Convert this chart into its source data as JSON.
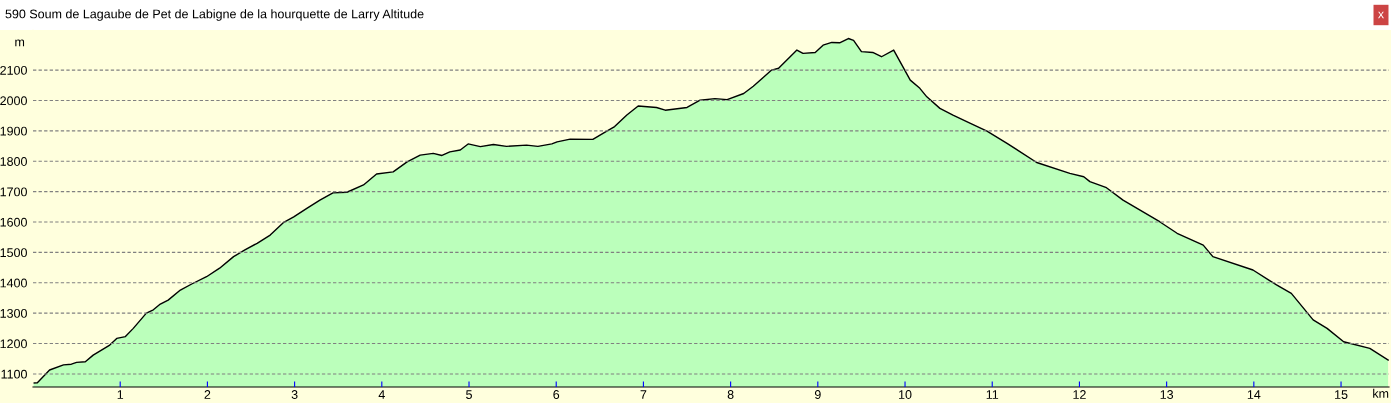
{
  "chart_data": {
    "type": "area",
    "title": "590 Soum de Lagaube de Pet de Labigne de la hourquette de Larry Altitude",
    "xlabel": "km",
    "ylabel": "m",
    "x": [
      0,
      0.05,
      0.19,
      0.35,
      0.44,
      0.5,
      0.6,
      0.69,
      0.88,
      0.96,
      1.06,
      1.15,
      1.3,
      1.38,
      1.46,
      1.55,
      1.69,
      1.82,
      1.99,
      2.14,
      2.3,
      2.43,
      2.57,
      2.72,
      2.87,
      2.99,
      3.14,
      3.29,
      3.44,
      3.6,
      3.79,
      3.94,
      4.13,
      4.29,
      4.44,
      4.59,
      4.69,
      4.78,
      4.9,
      4.99,
      5.13,
      5.28,
      5.43,
      5.66,
      5.79,
      5.95,
      6.01,
      6.16,
      6.42,
      6.58,
      6.67,
      6.81,
      6.94,
      7.15,
      7.25,
      7.5,
      7.65,
      7.82,
      7.96,
      8.15,
      8.26,
      8.38,
      8.47,
      8.55,
      8.72,
      8.76,
      8.83,
      8.97,
      9.06,
      9.16,
      9.25,
      9.35,
      9.41,
      9.5,
      9.63,
      9.73,
      9.87,
      10.06,
      10.17,
      10.25,
      10.4,
      10.55,
      10.75,
      10.94,
      11.17,
      11.51,
      11.89,
      12.05,
      12.12,
      12.31,
      12.5,
      12.92,
      13.12,
      13.42,
      13.53,
      13.99,
      14.26,
      14.43,
      14.68,
      14.84,
      15.03,
      15.33,
      15.54
    ],
    "series": [
      {
        "color": "#bbffbb",
        "values": [
          1070,
          1071,
          1113,
          1130,
          1132,
          1138,
          1140,
          1162,
          1195,
          1217,
          1223,
          1250,
          1300,
          1311,
          1330,
          1343,
          1376,
          1396,
          1420,
          1448,
          1486,
          1508,
          1530,
          1557,
          1598,
          1617,
          1645,
          1672,
          1696,
          1698,
          1722,
          1758,
          1765,
          1798,
          1820,
          1826,
          1819,
          1831,
          1837,
          1857,
          1848,
          1855,
          1849,
          1853,
          1849,
          1857,
          1864,
          1873,
          1872,
          1899,
          1914,
          1952,
          1982,
          1977,
          1968,
          1977,
          2001,
          2006,
          2003,
          2023,
          2047,
          2077,
          2100,
          2106,
          2155,
          2166,
          2155,
          2158,
          2182,
          2191,
          2190,
          2204,
          2198,
          2161,
          2158,
          2144,
          2166,
          2067,
          2040,
          2012,
          1974,
          1952,
          1925,
          1899,
          1859,
          1796,
          1760,
          1749,
          1733,
          1713,
          1672,
          1601,
          1563,
          1524,
          1486,
          1442,
          1393,
          1365,
          1278,
          1250,
          1206,
          1184,
          1146
        ]
      }
    ],
    "xlim": [
      0,
      15.55
    ],
    "ylim": [
      1057,
      2232
    ],
    "xticks": [
      1,
      2,
      3,
      4,
      5,
      6,
      7,
      8,
      9,
      10,
      11,
      12,
      13,
      14,
      15
    ],
    "yticks": [
      1100,
      1200,
      1300,
      1400,
      1500,
      1600,
      1700,
      1800,
      1900,
      2000,
      2100
    ],
    "grid": "y",
    "annotations": [
      "x"
    ]
  }
}
